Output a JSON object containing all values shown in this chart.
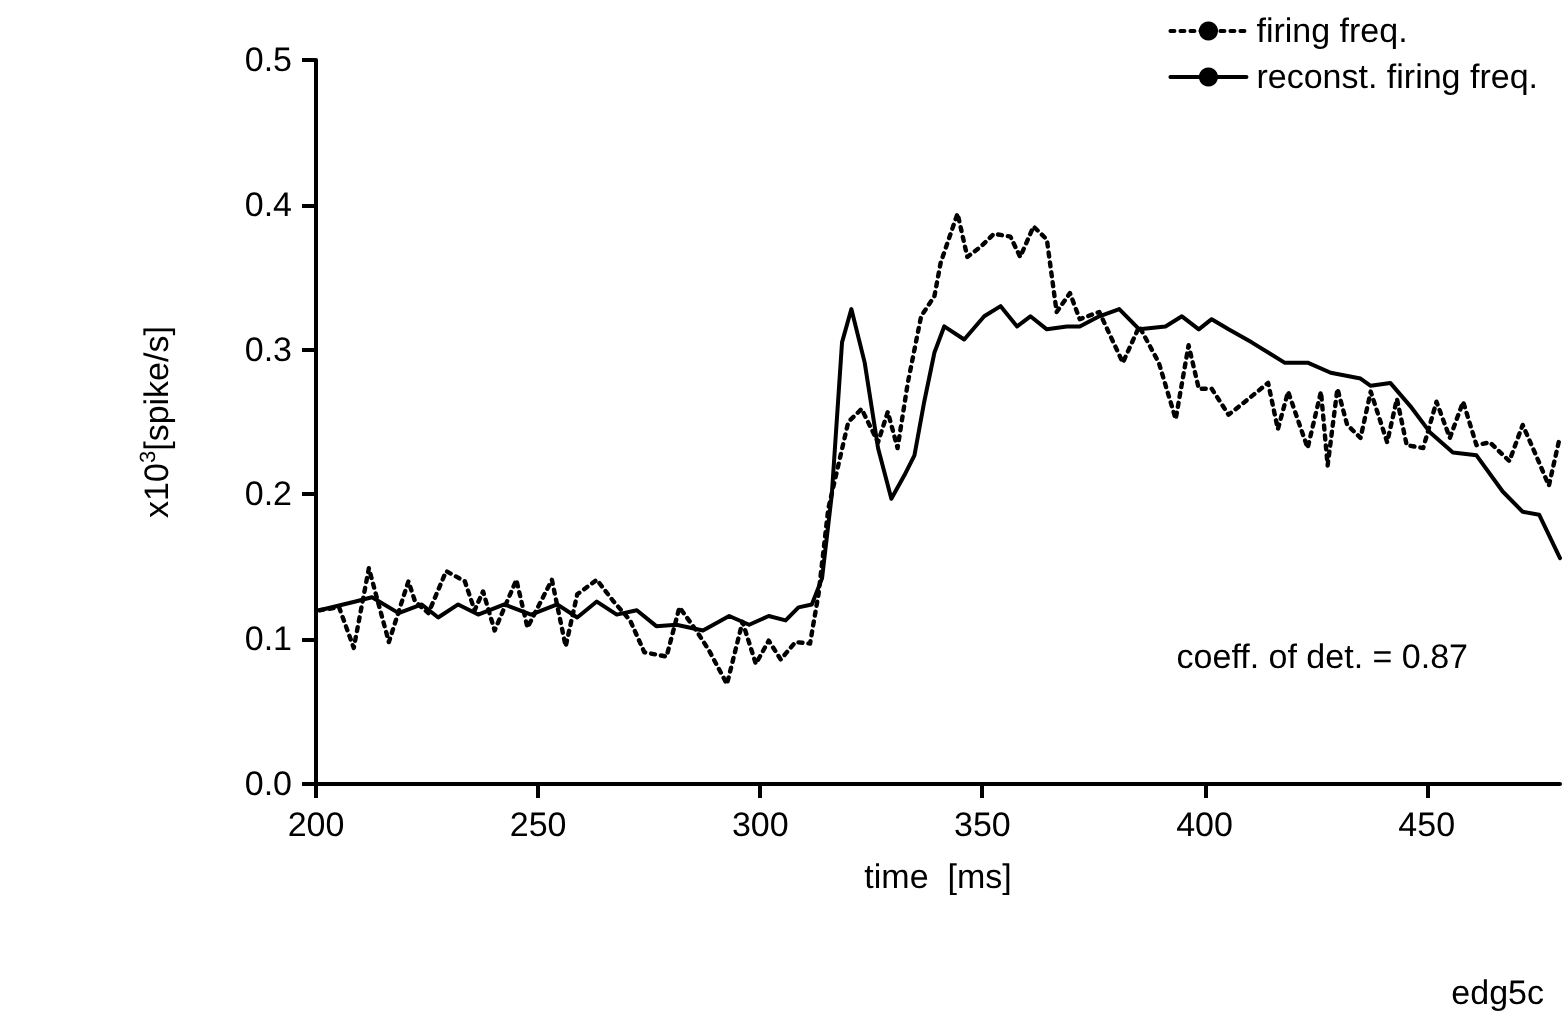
{
  "chart_data": {
    "type": "line",
    "xlabel": "time  [ms]",
    "ylabel": "x10$^{3}$[spike/s]",
    "xlim": [
      200,
      480
    ],
    "xticks": [
      200,
      250,
      300,
      350,
      400,
      450
    ],
    "ylim": [
      0,
      0.5
    ],
    "yticks": [
      {
        "value": 0,
        "label": "0.0"
      },
      0.1,
      0.2,
      0.3,
      0.4,
      0.5
    ],
    "grid": false,
    "legend": "top right",
    "marker": "none",
    "annotations": [
      "coeff. of det. = 0.87",
      "edg5c"
    ],
    "series": [
      {
        "name": "firing freq.",
        "color": "#000000",
        "line_style": "dotted",
        "x": [
          200.8,
          205.2,
          208.5,
          211.9,
          216.4,
          220.8,
          222.3,
          225.3,
          229.3,
          233.5,
          235.7,
          237.6,
          240.2,
          245.1,
          247.6,
          253.1,
          256.2,
          258.8,
          263.2,
          267.0,
          270.7,
          273.9,
          278.9,
          281.8,
          285.6,
          288.5,
          292.5,
          296.0,
          299.0,
          301.9,
          304.6,
          307.9,
          311.2,
          313.1,
          315.3,
          319.8,
          322.8,
          326.5,
          328.7,
          330.9,
          333.2,
          336.2,
          339.2,
          340.6,
          344.4,
          346.6,
          349.6,
          352.6,
          356.3,
          358.5,
          361.5,
          364.5,
          366.7,
          369.7,
          371.9,
          376.3,
          381.6,
          385.3,
          389.7,
          393.5,
          396.4,
          398.7,
          401.6,
          405.4,
          409.1,
          414.3,
          416.5,
          418.8,
          423.2,
          426.2,
          427.7,
          429.9,
          432.1,
          435.1,
          437.4,
          441.1,
          443.3,
          445.5,
          449.2,
          452.2,
          455.2,
          458.2,
          461.2,
          464.2,
          468.6,
          471.6,
          474.6,
          477.5,
          480.0
        ],
        "values": [
          0.12,
          0.122,
          0.094,
          0.149,
          0.098,
          0.14,
          0.126,
          0.118,
          0.147,
          0.14,
          0.12,
          0.133,
          0.106,
          0.141,
          0.108,
          0.141,
          0.095,
          0.131,
          0.141,
          0.126,
          0.113,
          0.091,
          0.088,
          0.122,
          0.106,
          0.092,
          0.069,
          0.112,
          0.083,
          0.099,
          0.086,
          0.098,
          0.097,
          0.131,
          0.19,
          0.25,
          0.259,
          0.236,
          0.257,
          0.232,
          0.277,
          0.323,
          0.337,
          0.36,
          0.394,
          0.364,
          0.371,
          0.38,
          0.378,
          0.364,
          0.385,
          0.376,
          0.326,
          0.339,
          0.321,
          0.326,
          0.291,
          0.316,
          0.291,
          0.252,
          0.303,
          0.273,
          0.273,
          0.255,
          0.264,
          0.277,
          0.245,
          0.271,
          0.232,
          0.271,
          0.22,
          0.273,
          0.248,
          0.239,
          0.271,
          0.236,
          0.266,
          0.234,
          0.232,
          0.264,
          0.239,
          0.264,
          0.234,
          0.236,
          0.223,
          0.248,
          0.227,
          0.206,
          0.24
        ]
      },
      {
        "name": "reconst. firing freq.",
        "color": "#000000",
        "line_style": "solid",
        "x": [
          200.8,
          208.9,
          212.6,
          218.6,
          223.8,
          227.5,
          232.0,
          236.5,
          242.4,
          248.4,
          254.3,
          258.8,
          263.2,
          267.7,
          272.2,
          276.6,
          281.1,
          287.1,
          293.0,
          297.5,
          301.9,
          305.7,
          308.6,
          311.6,
          313.9,
          316.1,
          318.4,
          320.5,
          323.5,
          326.5,
          329.5,
          332.4,
          334.7,
          336.9,
          339.2,
          341.4,
          345.9,
          350.4,
          354.1,
          357.8,
          360.8,
          364.5,
          369.0,
          371.9,
          376.3,
          380.8,
          385.3,
          391.2,
          394.9,
          398.7,
          401.6,
          405.4,
          410.6,
          418.0,
          423.2,
          428.4,
          435.1,
          437.4,
          441.8,
          446.3,
          450.7,
          455.9,
          461.2,
          467.1,
          471.6,
          475.3,
          480.0
        ],
        "values": [
          0.12,
          0.126,
          0.129,
          0.118,
          0.124,
          0.115,
          0.124,
          0.117,
          0.124,
          0.117,
          0.124,
          0.115,
          0.126,
          0.117,
          0.12,
          0.109,
          0.11,
          0.106,
          0.116,
          0.11,
          0.116,
          0.113,
          0.122,
          0.124,
          0.142,
          0.2,
          0.305,
          0.328,
          0.291,
          0.232,
          0.197,
          0.213,
          0.227,
          0.264,
          0.298,
          0.316,
          0.307,
          0.323,
          0.33,
          0.316,
          0.323,
          0.314,
          0.316,
          0.316,
          0.323,
          0.328,
          0.314,
          0.316,
          0.323,
          0.314,
          0.321,
          0.314,
          0.305,
          0.291,
          0.291,
          0.284,
          0.28,
          0.275,
          0.277,
          0.261,
          0.243,
          0.229,
          0.227,
          0.202,
          0.188,
          0.186,
          0.156
        ]
      }
    ]
  }
}
